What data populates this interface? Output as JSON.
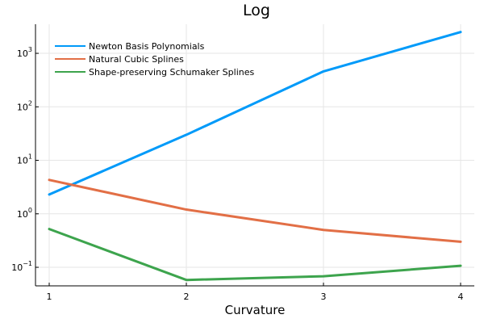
{
  "chart_data": {
    "type": "line",
    "title": "Log",
    "xlabel": "Curvature",
    "ylabel": "",
    "x": [
      1,
      2,
      3,
      4
    ],
    "xlim": [
      0.9,
      4.1
    ],
    "ylim": [
      0.045,
      3500
    ],
    "yscale": "log",
    "grid": true,
    "legend_position": "top-left",
    "x_ticks": [
      "1",
      "2",
      "3",
      "4"
    ],
    "y_ticks": [
      {
        "value": 0.1,
        "base": "10",
        "exp": "−1"
      },
      {
        "value": 1,
        "base": "10",
        "exp": "0"
      },
      {
        "value": 10,
        "base": "10",
        "exp": "1"
      },
      {
        "value": 100,
        "base": "10",
        "exp": "2"
      },
      {
        "value": 1000,
        "base": "10",
        "exp": "3"
      }
    ],
    "series": [
      {
        "name": "Newton Basis Polynomials",
        "color": "#009af9",
        "values": [
          2.3,
          30,
          460,
          2500
        ]
      },
      {
        "name": "Natural Cubic Splines",
        "color": "#e26f46",
        "values": [
          4.3,
          1.2,
          0.5,
          0.3
        ]
      },
      {
        "name": "Shape-preserving Schumaker Splines",
        "color": "#3da44d",
        "values": [
          0.52,
          0.058,
          0.068,
          0.107
        ]
      }
    ]
  }
}
